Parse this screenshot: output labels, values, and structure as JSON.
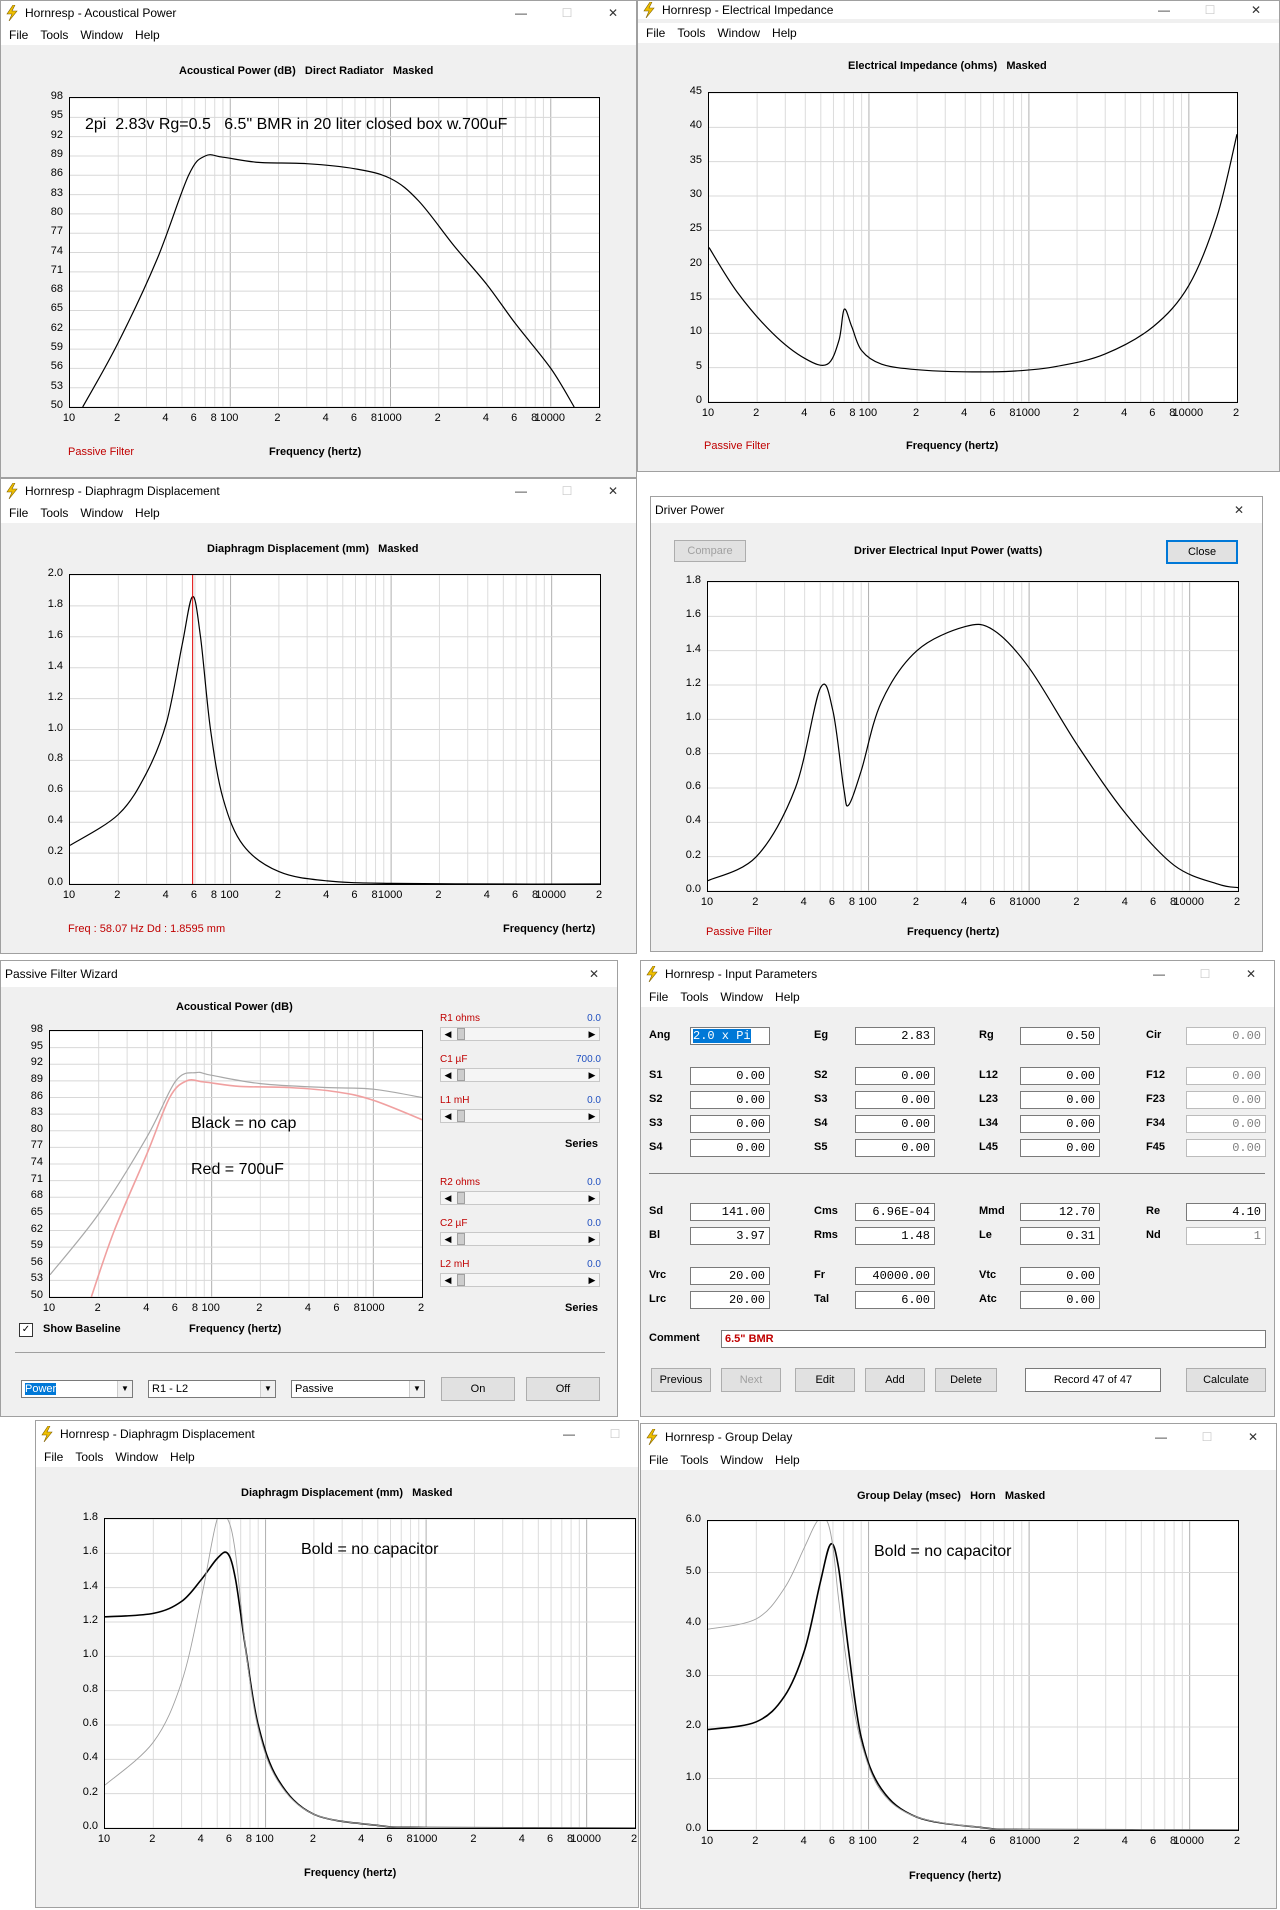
{
  "menu": {
    "file": "File",
    "tools": "Tools",
    "window": "Window",
    "help": "Help"
  },
  "controls": {
    "min": "—",
    "max": "☐",
    "close": "✕"
  },
  "w1": {
    "title": "Hornresp - Acoustical Power",
    "chart_title": "Acoustical Power (dB)   Direct Radiator   Masked",
    "annotation": "2pi  2.83v Rg=0.5   6.5\" BMR in 20 liter closed box w.700uF",
    "passive": "Passive Filter",
    "xlabel": "Frequency (hertz)"
  },
  "w2": {
    "title": "Hornresp - Electrical Impedance",
    "chart_title": "Electrical Impedance (ohms)   Masked",
    "passive": "Passive Filter",
    "xlabel": "Frequency (hertz)"
  },
  "w3": {
    "title": "Hornresp - Diaphragm Displacement",
    "chart_title": "Diaphragm Displacement (mm)   Masked",
    "freq": "Freq : 58.07 Hz     Dd : 1.8595 mm",
    "xlabel": "Frequency (hertz)"
  },
  "w4": {
    "title": "Driver Power",
    "chart_title": "Driver Electrical Input Power (watts)",
    "compare": "Compare",
    "close_btn": "Close",
    "passive": "Passive Filter",
    "xlabel": "Frequency (hertz)"
  },
  "w5": {
    "title": "Passive Filter Wizard",
    "chart_title": "Acoustical Power (dB)",
    "note1": "Black = no cap",
    "note2": "Red = 700uF",
    "show_baseline": "Show Baseline",
    "xlabel": "Frequency (hertz)",
    "r1": "R1  ohms",
    "r1v": "0.0",
    "c1": "C1  µF",
    "c1v": "700.0",
    "l1": "L1  mH",
    "l1v": "0.0",
    "series1": "Series",
    "r2": "R2  ohms",
    "r2v": "0.0",
    "c2": "C2  µF",
    "c2v": "0.0",
    "l2": "L2  mH",
    "l2v": "0.0",
    "series2": "Series",
    "dd1": "Power",
    "dd2": "R1 - L2",
    "dd3": "Passive",
    "on": "On",
    "off": "Off"
  },
  "w6": {
    "title": "Hornresp - Input Parameters",
    "ang": "Ang",
    "ang_v": "2.0 x Pi",
    "eg": "Eg",
    "eg_v": "2.83",
    "rg": "Rg",
    "rg_v": "0.50",
    "cir": "Cir",
    "cir_v": "0.00",
    "s1": "S1",
    "s1_v": "0.00",
    "s2": "S2",
    "s2_v": "0.00",
    "s3": "S3",
    "s3_v": "0.00",
    "s4": "S4",
    "s4_v": "0.00",
    "s2b": "S2",
    "s2b_v": "0.00",
    "s3b": "S3",
    "s3b_v": "0.00",
    "s4b": "S4",
    "s4b_v": "0.00",
    "s5": "S5",
    "s5_v": "0.00",
    "l12": "L12",
    "l12_v": "0.00",
    "l23": "L23",
    "l23_v": "0.00",
    "l34": "L34",
    "l34_v": "0.00",
    "l45": "L45",
    "l45_v": "0.00",
    "f12": "F12",
    "f12_v": "0.00",
    "f23": "F23",
    "f23_v": "0.00",
    "f34": "F34",
    "f34_v": "0.00",
    "f45": "F45",
    "f45_v": "0.00",
    "sd": "Sd",
    "sd_v": "141.00",
    "bl": "Bl",
    "bl_v": "3.97",
    "cms": "Cms",
    "cms_v": "6.96E-04",
    "rms": "Rms",
    "rms_v": "1.48",
    "mmd": "Mmd",
    "mmd_v": "12.70",
    "le": "Le",
    "le_v": "0.31",
    "re": "Re",
    "re_v": "4.10",
    "nd": "Nd",
    "nd_v": "1",
    "vrc": "Vrc",
    "vrc_v": "20.00",
    "lrc": "Lrc",
    "lrc_v": "20.00",
    "fr": "Fr",
    "fr_v": "40000.00",
    "tal": "Tal",
    "tal_v": "6.00",
    "vtc": "Vtc",
    "vtc_v": "0.00",
    "atc": "Atc",
    "atc_v": "0.00",
    "comment": "Comment",
    "comment_v": "6.5\" BMR",
    "previous": "Previous",
    "next": "Next",
    "edit": "Edit",
    "add": "Add",
    "delete": "Delete",
    "record": "Record 47 of 47",
    "calculate": "Calculate"
  },
  "w7": {
    "title": "Hornresp - Diaphragm Displacement",
    "chart_title": "Diaphragm Displacement (mm)   Masked",
    "annotation": "Bold = no capacitor",
    "xlabel": "Frequency (hertz)"
  },
  "w8": {
    "title": "Hornresp - Group Delay",
    "chart_title": "Group Delay (msec)   Horn   Masked",
    "annotation": "Bold = no capacitor",
    "xlabel": "Frequency (hertz)"
  },
  "chart_data": [
    {
      "type": "line",
      "title": "Acoustical Power (dB)   Direct Radiator   Masked",
      "xlabel": "Frequency (hertz)",
      "xscale": "log",
      "xlim": [
        10,
        20000
      ],
      "ylim": [
        50,
        98
      ],
      "yticks": [
        98,
        95,
        92,
        89,
        86,
        83,
        80,
        77,
        74,
        71,
        68,
        65,
        62,
        59,
        56,
        53,
        50
      ],
      "series": [
        {
          "x": [
            12,
            20,
            35,
            55,
            70,
            90,
            150,
            300,
            600,
            1000,
            1500,
            2500,
            4000,
            6000,
            10000,
            14000
          ],
          "y": [
            50,
            60,
            73,
            86,
            89,
            88.8,
            88,
            87.8,
            87,
            85.5,
            82,
            75,
            69,
            63,
            56,
            50
          ]
        }
      ]
    },
    {
      "type": "line",
      "title": "Electrical Impedance (ohms)   Masked",
      "xlabel": "Frequency (hertz)",
      "xscale": "log",
      "xlim": [
        10,
        20000
      ],
      "ylim": [
        0,
        45
      ],
      "yticks": [
        45,
        40,
        35,
        30,
        25,
        20,
        15,
        10,
        5,
        0
      ],
      "series": [
        {
          "x": [
            10,
            15,
            25,
            40,
            55,
            65,
            70,
            78,
            90,
            120,
            200,
            400,
            800,
            1500,
            3000,
            6000,
            10000,
            15000,
            20000
          ],
          "y": [
            22.5,
            16,
            10,
            6.3,
            5.5,
            9,
            13.5,
            11,
            7.5,
            5.5,
            4.7,
            4.4,
            4.5,
            5.2,
            7,
            11,
            17,
            27,
            39
          ]
        }
      ]
    },
    {
      "type": "line",
      "title": "Diaphragm Displacement (mm)   Masked",
      "xlabel": "Frequency (hertz)",
      "xscale": "log",
      "xlim": [
        10,
        20000
      ],
      "ylim": [
        0,
        2.0
      ],
      "yticks": [
        2.0,
        1.8,
        1.6,
        1.4,
        1.2,
        1.0,
        0.8,
        0.6,
        0.4,
        0.2,
        0.0
      ],
      "series": [
        {
          "x": [
            10,
            20,
            30,
            40,
            50,
            58,
            65,
            75,
            90,
            120,
            200,
            400,
            1000,
            5000,
            20000
          ],
          "y": [
            0.25,
            0.45,
            0.72,
            1.05,
            1.55,
            1.86,
            1.6,
            1.0,
            0.55,
            0.25,
            0.08,
            0.02,
            0.004,
            0,
            0
          ]
        }
      ]
    },
    {
      "type": "line",
      "title": "Driver Electrical Input Power (watts)",
      "xlabel": "Frequency (hertz)",
      "xscale": "log",
      "xlim": [
        10,
        20000
      ],
      "ylim": [
        0,
        1.8
      ],
      "yticks": [
        1.8,
        1.6,
        1.4,
        1.2,
        1.0,
        0.8,
        0.6,
        0.4,
        0.2,
        0.0
      ],
      "series": [
        {
          "x": [
            10,
            20,
            35,
            50,
            60,
            70,
            75,
            90,
            120,
            200,
            400,
            600,
            1000,
            2000,
            4000,
            8000,
            15000,
            20000
          ],
          "y": [
            0.06,
            0.2,
            0.6,
            1.18,
            1.05,
            0.6,
            0.5,
            0.7,
            1.1,
            1.4,
            1.54,
            1.52,
            1.3,
            0.85,
            0.45,
            0.15,
            0.04,
            0.02
          ]
        }
      ]
    },
    {
      "type": "line",
      "title": "Acoustical Power (dB)",
      "xlabel": "Frequency (hertz)",
      "xscale": "log",
      "xlim": [
        10,
        2000
      ],
      "ylim": [
        50,
        98
      ],
      "yticks": [
        98,
        95,
        92,
        89,
        86,
        83,
        80,
        77,
        74,
        71,
        68,
        65,
        62,
        59,
        56,
        53,
        50
      ],
      "series": [
        {
          "x": [
            10,
            20,
            40,
            60,
            80,
            100,
            200,
            500,
            1000,
            2000
          ],
          "y": [
            54,
            65,
            79,
            89,
            90.5,
            90,
            88.5,
            87.8,
            87.5,
            86
          ]
        },
        {
          "x": [
            18,
            25,
            40,
            55,
            70,
            90,
            150,
            300,
            600,
            1000,
            2000
          ],
          "y": [
            50,
            62,
            76,
            86,
            89,
            88.8,
            88,
            87.8,
            87,
            85.5,
            82
          ]
        }
      ]
    },
    {
      "type": "line",
      "title": "Diaphragm Displacement (mm)   Masked",
      "xlabel": "Frequency (hertz)",
      "xscale": "log",
      "xlim": [
        10,
        20000
      ],
      "ylim": [
        0,
        1.8
      ],
      "yticks": [
        1.8,
        1.6,
        1.4,
        1.2,
        1.0,
        0.8,
        0.6,
        0.4,
        0.2,
        0.0
      ],
      "series": [
        {
          "x": [
            10,
            20,
            30,
            40,
            50,
            58,
            65,
            75,
            90,
            120,
            200,
            500,
            1000,
            20000
          ],
          "y": [
            1.23,
            1.25,
            1.32,
            1.45,
            1.57,
            1.6,
            1.45,
            1.05,
            0.6,
            0.28,
            0.08,
            0.015,
            0.003,
            0
          ]
        },
        {
          "x": [
            10,
            20,
            30,
            40,
            50,
            58,
            65,
            75,
            90,
            120,
            200,
            500,
            1000,
            20000
          ],
          "y": [
            0.25,
            0.5,
            0.85,
            1.35,
            1.8,
            1.85,
            1.6,
            1.05,
            0.58,
            0.27,
            0.08,
            0.015,
            0.003,
            0
          ]
        }
      ]
    },
    {
      "type": "line",
      "title": "Group Delay (msec)   Horn   Masked",
      "xlabel": "Frequency (hertz)",
      "xscale": "log",
      "xlim": [
        10,
        20000
      ],
      "ylim": [
        0,
        6.0
      ],
      "yticks": [
        6.0,
        5.0,
        4.0,
        3.0,
        2.0,
        1.0,
        0.0
      ],
      "series": [
        {
          "x": [
            10,
            20,
            30,
            40,
            50,
            58,
            65,
            75,
            90,
            120,
            200,
            500,
            1000,
            20000
          ],
          "y": [
            1.95,
            2.1,
            2.6,
            3.5,
            4.8,
            5.55,
            5.1,
            3.5,
            1.8,
            0.8,
            0.25,
            0.05,
            0.01,
            0
          ]
        },
        {
          "x": [
            10,
            20,
            30,
            40,
            48,
            55,
            60,
            65,
            75,
            90,
            120,
            200,
            500,
            1000,
            20000
          ],
          "y": [
            3.9,
            4.1,
            4.7,
            5.5,
            6.0,
            6.0,
            5.5,
            4.5,
            3.0,
            1.7,
            0.75,
            0.25,
            0.05,
            0.01,
            0
          ]
        }
      ]
    }
  ]
}
